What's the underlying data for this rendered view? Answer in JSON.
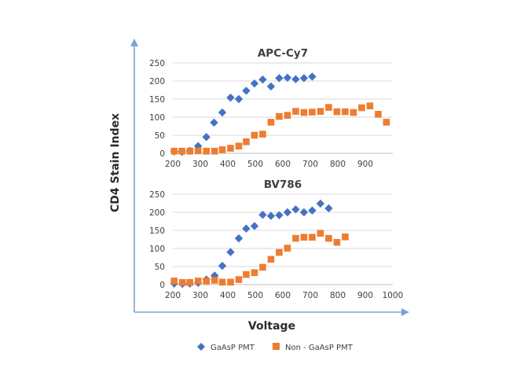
{
  "figure": {
    "ylabel": "CD4 Stain Index",
    "xlabel": "Voltage",
    "colors": {
      "gaasp": "#4472c4",
      "non_gaasp": "#ed7d31",
      "frame": "#7aa5d2"
    },
    "legend": [
      {
        "name": "GaAsP PMT",
        "marker": "diamond",
        "color": "#4472c4"
      },
      {
        "name": "Non - GaAsP PMT",
        "marker": "square",
        "color": "#ed7d31"
      }
    ]
  },
  "chart_data": [
    {
      "type": "scatter",
      "title": "APC-Cy7",
      "xlim": [
        200,
        1000
      ],
      "ylim": [
        0,
        250
      ],
      "x_ticks": [
        200,
        300,
        400,
        500,
        600,
        700,
        800,
        900
      ],
      "y_ticks": [
        0,
        50,
        100,
        150,
        200,
        250
      ],
      "grid": true,
      "series": [
        {
          "name": "GaAsP PMT",
          "marker": "diamond",
          "color": "#4472c4",
          "points": [
            [
              205,
              5
            ],
            [
              233,
              4
            ],
            [
              262,
              7
            ],
            [
              292,
              20
            ],
            [
              322,
              45
            ],
            [
              350,
              85
            ],
            [
              380,
              113
            ],
            [
              410,
              154
            ],
            [
              440,
              150
            ],
            [
              467,
              173
            ],
            [
              497,
              193
            ],
            [
              527,
              204
            ],
            [
              557,
              185
            ],
            [
              587,
              208
            ],
            [
              617,
              209
            ],
            [
              647,
              205
            ],
            [
              677,
              208
            ],
            [
              707,
              212
            ]
          ]
        },
        {
          "name": "Non - GaAsP PMT",
          "marker": "square",
          "color": "#ed7d31",
          "points": [
            [
              205,
              6
            ],
            [
              233,
              6
            ],
            [
              262,
              6
            ],
            [
              292,
              7
            ],
            [
              322,
              6
            ],
            [
              352,
              6
            ],
            [
              380,
              10
            ],
            [
              410,
              14
            ],
            [
              440,
              20
            ],
            [
              467,
              32
            ],
            [
              497,
              50
            ],
            [
              527,
              53
            ],
            [
              557,
              86
            ],
            [
              587,
              102
            ],
            [
              617,
              105
            ],
            [
              647,
              116
            ],
            [
              677,
              113
            ],
            [
              707,
              114
            ],
            [
              737,
              116
            ],
            [
              767,
              127
            ],
            [
              797,
              115
            ],
            [
              827,
              115
            ],
            [
              857,
              113
            ],
            [
              887,
              126
            ],
            [
              917,
              131
            ],
            [
              947,
              108
            ],
            [
              977,
              86
            ]
          ]
        }
      ]
    },
    {
      "type": "scatter",
      "title": "BV786",
      "xlim": [
        200,
        1000
      ],
      "ylim": [
        0,
        250
      ],
      "x_ticks": [
        200,
        300,
        400,
        500,
        600,
        700,
        800,
        900,
        1000
      ],
      "y_ticks": [
        0,
        50,
        100,
        150,
        200,
        250
      ],
      "grid": true,
      "series": [
        {
          "name": "GaAsP PMT",
          "marker": "diamond",
          "color": "#4472c4",
          "points": [
            [
              205,
              3
            ],
            [
              235,
              2
            ],
            [
              262,
              3
            ],
            [
              292,
              5
            ],
            [
              322,
              14
            ],
            [
              352,
              25
            ],
            [
              380,
              52
            ],
            [
              410,
              90
            ],
            [
              440,
              128
            ],
            [
              467,
              155
            ],
            [
              497,
              162
            ],
            [
              527,
              193
            ],
            [
              557,
              190
            ],
            [
              587,
              192
            ],
            [
              617,
              200
            ],
            [
              647,
              208
            ],
            [
              677,
              200
            ],
            [
              707,
              205
            ],
            [
              737,
              224
            ],
            [
              767,
              211
            ]
          ]
        },
        {
          "name": "Non - GaAsP PMT",
          "marker": "square",
          "color": "#ed7d31",
          "points": [
            [
              205,
              10
            ],
            [
              235,
              6
            ],
            [
              262,
              6
            ],
            [
              292,
              10
            ],
            [
              322,
              10
            ],
            [
              352,
              12
            ],
            [
              380,
              7
            ],
            [
              410,
              7
            ],
            [
              440,
              14
            ],
            [
              467,
              28
            ],
            [
              497,
              33
            ],
            [
              527,
              48
            ],
            [
              557,
              70
            ],
            [
              587,
              89
            ],
            [
              617,
              101
            ],
            [
              647,
              128
            ],
            [
              677,
              131
            ],
            [
              707,
              131
            ],
            [
              737,
              142
            ],
            [
              767,
              128
            ],
            [
              797,
              117
            ],
            [
              827,
              132
            ]
          ]
        }
      ]
    }
  ]
}
